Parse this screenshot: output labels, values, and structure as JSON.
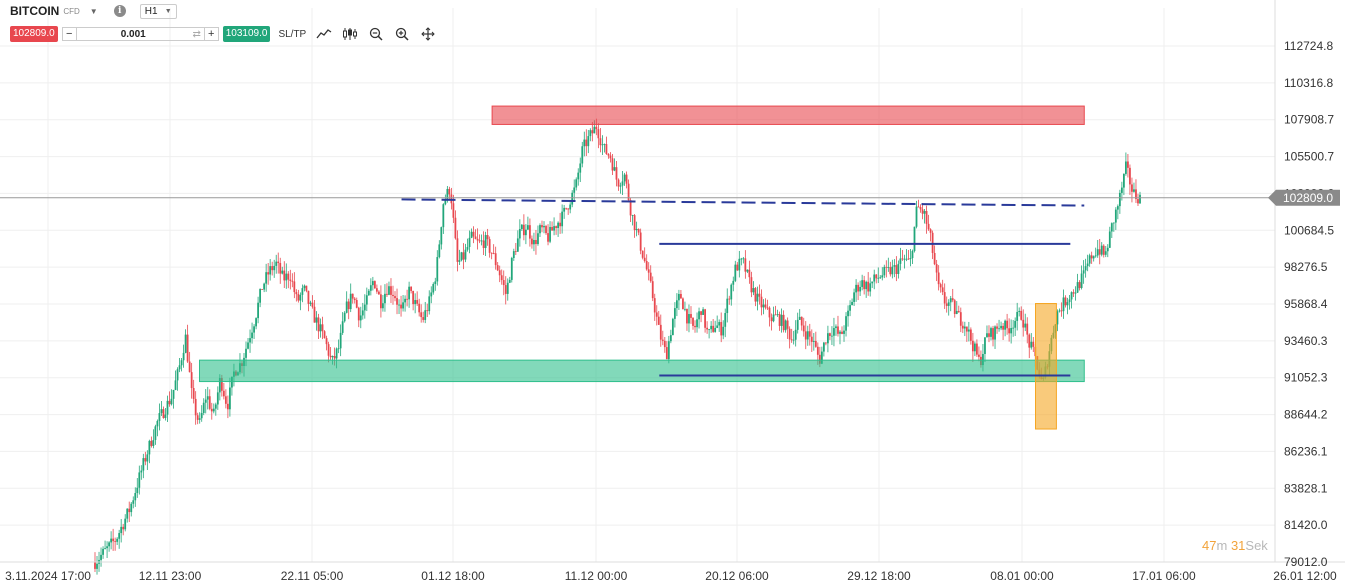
{
  "header": {
    "symbol": "BITCOIN",
    "instrument_type": "CFD",
    "info_icon": "i",
    "timeframe": "H1"
  },
  "trade": {
    "sell_price": "102809.0",
    "quantity": "0.001",
    "minus": "−",
    "plus": "+",
    "buy_price": "103109.0",
    "sltp_label": "SL/TP",
    "sell_color": "#e8474e",
    "buy_color": "#21a67a"
  },
  "tools": [
    "line-chart-icon",
    "candlestick-icon",
    "zoom-out-icon",
    "zoom-in-icon",
    "crosshair-icon"
  ],
  "chart_data": {
    "type": "candlestick",
    "y_ticks": [
      "112724.8",
      "110316.8",
      "107908.7",
      "105500.7",
      "103092.6",
      "100684.5",
      "98276.5",
      "95868.4",
      "93460.3",
      "91052.3",
      "88644.2",
      "86236.1",
      "83828.1",
      "81420.0",
      "79012.0"
    ],
    "ylim": [
      79012.0,
      113500
    ],
    "x_ticks": [
      "3.11.2024 17:00",
      "12.11 23:00",
      "22.11 05:00",
      "01.12 18:00",
      "11.12 00:00",
      "20.12 06:00",
      "29.12 18:00",
      "08.01 00:00",
      "17.01 06:00",
      "26.01 12:00"
    ],
    "current_price": "102809.0",
    "price_path": [
      [
        0,
        79012
      ],
      [
        3,
        80500
      ],
      [
        5,
        82500
      ],
      [
        7,
        85500
      ],
      [
        9,
        88200
      ],
      [
        11,
        89800
      ],
      [
        12,
        91500
      ],
      [
        13,
        93700
      ],
      [
        14,
        89500
      ],
      [
        15,
        88000
      ],
      [
        16,
        90000
      ],
      [
        17,
        88500
      ],
      [
        18,
        91000
      ],
      [
        19,
        89200
      ],
      [
        20,
        91500
      ],
      [
        21,
        92000
      ],
      [
        22,
        93500
      ],
      [
        23,
        95000
      ],
      [
        24,
        97000
      ],
      [
        25,
        98000
      ],
      [
        26,
        98500
      ],
      [
        27,
        97500
      ],
      [
        28,
        97800
      ],
      [
        29,
        96000
      ],
      [
        30,
        96800
      ],
      [
        31,
        95500
      ],
      [
        32,
        94500
      ],
      [
        33,
        93500
      ],
      [
        34,
        92000
      ],
      [
        35,
        93000
      ],
      [
        36,
        95500
      ],
      [
        37,
        96500
      ],
      [
        38,
        95000
      ],
      [
        39,
        96000
      ],
      [
        40,
        97500
      ],
      [
        41,
        96000
      ],
      [
        42,
        97000
      ],
      [
        43,
        96500
      ],
      [
        44,
        95200
      ],
      [
        45,
        96800
      ],
      [
        46,
        95800
      ],
      [
        47,
        94800
      ],
      [
        48,
        96000
      ],
      [
        49,
        98000
      ],
      [
        50,
        102500
      ],
      [
        51,
        103500
      ],
      [
        52,
        98500
      ],
      [
        53,
        99000
      ],
      [
        54,
        100200
      ],
      [
        55,
        99800
      ],
      [
        56,
        100000
      ],
      [
        57,
        99200
      ],
      [
        58,
        98000
      ],
      [
        59,
        96500
      ],
      [
        60,
        99000
      ],
      [
        61,
        100500
      ],
      [
        62,
        101000
      ],
      [
        63,
        99800
      ],
      [
        64,
        100800
      ],
      [
        65,
        100200
      ],
      [
        66,
        101000
      ],
      [
        67,
        101500
      ],
      [
        68,
        102500
      ],
      [
        69,
        103500
      ],
      [
        70,
        106000
      ],
      [
        71,
        106800
      ],
      [
        72,
        107500
      ],
      [
        73,
        106000
      ],
      [
        74,
        105500
      ],
      [
        75,
        103800
      ],
      [
        76,
        104300
      ],
      [
        77,
        101800
      ],
      [
        78,
        100200
      ],
      [
        79,
        98500
      ],
      [
        80,
        96500
      ],
      [
        81,
        94000
      ],
      [
        82,
        92500
      ],
      [
        83,
        95000
      ],
      [
        84,
        96500
      ],
      [
        85,
        95000
      ],
      [
        86,
        94200
      ],
      [
        87,
        95600
      ],
      [
        88,
        93800
      ],
      [
        89,
        94500
      ],
      [
        90,
        94200
      ],
      [
        91,
        96500
      ],
      [
        92,
        98300
      ],
      [
        93,
        98600
      ],
      [
        94,
        97200
      ],
      [
        95,
        96200
      ],
      [
        96,
        95600
      ],
      [
        97,
        95000
      ],
      [
        98,
        95000
      ],
      [
        99,
        94500
      ],
      [
        100,
        93600
      ],
      [
        101,
        94800
      ],
      [
        102,
        94000
      ],
      [
        103,
        93500
      ],
      [
        104,
        92200
      ],
      [
        105,
        93800
      ],
      [
        106,
        94300
      ],
      [
        107,
        93700
      ],
      [
        108,
        95000
      ],
      [
        109,
        96700
      ],
      [
        110,
        97300
      ],
      [
        111,
        97000
      ],
      [
        112,
        97500
      ],
      [
        113,
        97800
      ],
      [
        114,
        98000
      ],
      [
        115,
        98200
      ],
      [
        116,
        98800
      ],
      [
        117,
        98500
      ],
      [
        118,
        102200
      ],
      [
        119,
        101800
      ],
      [
        120,
        100000
      ],
      [
        121,
        97000
      ],
      [
        122,
        96000
      ],
      [
        123,
        95800
      ],
      [
        124,
        95000
      ],
      [
        125,
        94500
      ],
      [
        126,
        93200
      ],
      [
        127,
        92000
      ],
      [
        128,
        93800
      ],
      [
        129,
        94000
      ],
      [
        130,
        94600
      ],
      [
        131,
        94200
      ],
      [
        132,
        94800
      ],
      [
        133,
        95200
      ],
      [
        134,
        93400
      ],
      [
        135,
        92300
      ],
      [
        136,
        90500
      ],
      [
        137,
        92900
      ],
      [
        138,
        95200
      ],
      [
        139,
        95900
      ],
      [
        140,
        96500
      ],
      [
        141,
        97000
      ],
      [
        142,
        97800
      ],
      [
        143,
        99000
      ],
      [
        144,
        99500
      ],
      [
        145,
        99000
      ],
      [
        146,
        101000
      ],
      [
        147,
        102600
      ],
      [
        148,
        104800
      ],
      [
        149,
        103100
      ],
      [
        150,
        102809
      ]
    ],
    "annotations": [
      {
        "kind": "resistance-zone",
        "color": "#e8474e",
        "price_top": 108800,
        "price_bottom": 107600,
        "from": 57,
        "to": 142
      },
      {
        "kind": "support-zone",
        "color": "#2fbf8c",
        "price_top": 92200,
        "price_bottom": 90800,
        "from": 15,
        "to": 142
      },
      {
        "kind": "highlight-zone",
        "color": "#f5a623",
        "price_top": 95900,
        "price_bottom": 87700,
        "from": 135,
        "to": 138
      },
      {
        "kind": "dashed-trendline",
        "color": "#2a3a9a",
        "price_start": 102700,
        "price_end": 102300,
        "from": 44,
        "to": 142
      },
      {
        "kind": "horizontal-line",
        "color": "#2a3a9a",
        "price": 99800,
        "from": 81,
        "to": 140
      },
      {
        "kind": "horizontal-line",
        "color": "#2a3a9a",
        "price": 91200,
        "from": 81,
        "to": 140
      }
    ]
  },
  "timer": {
    "minutes": "47",
    "m_label": "m",
    "seconds": "31",
    "s_label": "Sek"
  }
}
